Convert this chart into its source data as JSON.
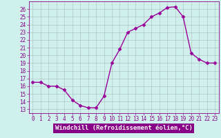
{
  "x": [
    0,
    1,
    2,
    3,
    4,
    5,
    6,
    7,
    8,
    9,
    10,
    11,
    12,
    13,
    14,
    15,
    16,
    17,
    18,
    19,
    20,
    21,
    22,
    23
  ],
  "y": [
    16.5,
    16.5,
    16.0,
    16.0,
    15.5,
    14.2,
    13.5,
    13.2,
    13.2,
    14.7,
    19.0,
    20.8,
    23.0,
    23.5,
    24.0,
    25.0,
    25.5,
    26.2,
    26.3,
    25.0,
    20.3,
    19.5,
    19.0,
    19.0
  ],
  "line_color": "#990099",
  "marker": "D",
  "marker_size": 2.5,
  "line_width": 1.0,
  "bg_color": "#cff0ec",
  "grid_color": "#aabbbb",
  "xlabel": "Windchill (Refroidissement éolien,°C)",
  "xlabel_bg": "#880088",
  "xlabel_color": "#ffffff",
  "ylabel_ticks": [
    13,
    14,
    15,
    16,
    17,
    18,
    19,
    20,
    21,
    22,
    23,
    24,
    25,
    26
  ],
  "ylim": [
    12.5,
    27
  ],
  "xlim": [
    -0.5,
    23.5
  ],
  "xtick_labels": [
    "0",
    "1",
    "2",
    "3",
    "4",
    "5",
    "6",
    "7",
    "8",
    "9",
    "10",
    "11",
    "12",
    "13",
    "14",
    "15",
    "16",
    "17",
    "18",
    "19",
    "20",
    "21",
    "22",
    "23"
  ],
  "tick_color": "#880088",
  "axis_color": "#880088",
  "label_fontsize": 6.5,
  "tick_fontsize": 5.5,
  "ytick_fontsize": 5.5
}
